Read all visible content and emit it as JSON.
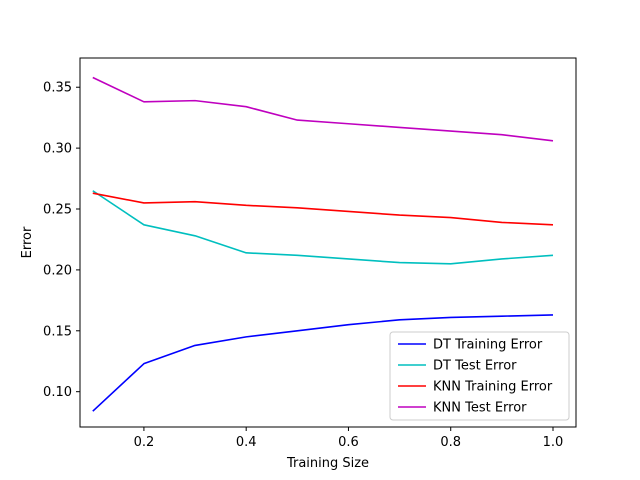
{
  "chart_data": {
    "type": "line",
    "title": "",
    "xlabel": "Training Size",
    "ylabel": "Error",
    "xlim": [
      0.075,
      1.045
    ],
    "ylim": [
      0.071,
      0.374
    ],
    "x_ticks": [
      0.2,
      0.4,
      0.6,
      0.8,
      1.0
    ],
    "x_tick_labels": [
      "0.2",
      "0.4",
      "0.6",
      "0.8",
      "1.0"
    ],
    "y_ticks": [
      0.1,
      0.15,
      0.2,
      0.25,
      0.3,
      0.35
    ],
    "y_tick_labels": [
      "0.10",
      "0.15",
      "0.20",
      "0.25",
      "0.30",
      "0.35"
    ],
    "grid": false,
    "legend_position": "lower-right",
    "x": [
      0.1,
      0.2,
      0.3,
      0.4,
      0.5,
      0.6,
      0.7,
      0.8,
      0.9,
      1.0
    ],
    "series": [
      {
        "name": "DT Training Error",
        "color": "#0000ff",
        "values": [
          0.084,
          0.123,
          0.138,
          0.145,
          0.15,
          0.155,
          0.159,
          0.161,
          0.162,
          0.163
        ]
      },
      {
        "name": "DT Test Error",
        "color": "#00bfbf",
        "values": [
          0.265,
          0.237,
          0.228,
          0.214,
          0.212,
          0.209,
          0.206,
          0.205,
          0.209,
          0.212
        ]
      },
      {
        "name": "KNN Training Error",
        "color": "#ff0000",
        "values": [
          0.263,
          0.255,
          0.256,
          0.253,
          0.251,
          0.248,
          0.245,
          0.243,
          0.239,
          0.237
        ]
      },
      {
        "name": "KNN Test Error",
        "color": "#bf00bf",
        "values": [
          0.358,
          0.338,
          0.339,
          0.334,
          0.323,
          0.32,
          0.317,
          0.314,
          0.311,
          0.306
        ]
      }
    ]
  }
}
